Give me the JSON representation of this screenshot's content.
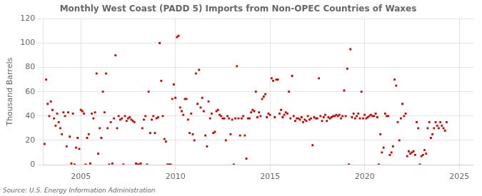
{
  "chart_data": {
    "type": "scatter",
    "title": "Monthly West Coast (PADD 5) Imports from Non-OPEC Countries of Waxes",
    "ylabel": "Thousand Barrels",
    "annotation": "Source: U.S. Energy Information Administration",
    "color": "#CC0000",
    "marker": "square",
    "grid": true,
    "xlim": [
      2003.0,
      2025.75
    ],
    "xticks": [
      2005,
      2010,
      2015,
      2020,
      2025
    ],
    "ylim": [
      0,
      120
    ],
    "yticks": [
      0,
      20,
      40,
      60,
      80,
      100,
      120
    ],
    "x": [
      2003.083,
      2003.167,
      2003.25,
      2003.333,
      2003.417,
      2003.5,
      2003.583,
      2003.667,
      2003.75,
      2003.833,
      2003.917,
      2004.0,
      2004.083,
      2004.167,
      2004.25,
      2004.333,
      2004.417,
      2004.5,
      2004.583,
      2004.667,
      2004.75,
      2004.833,
      2004.917,
      2005.0,
      2005.083,
      2005.167,
      2005.25,
      2005.333,
      2005.417,
      2005.5,
      2005.583,
      2005.667,
      2005.75,
      2005.833,
      2005.917,
      2006.0,
      2006.083,
      2006.167,
      2006.25,
      2006.333,
      2006.417,
      2006.5,
      2006.583,
      2006.667,
      2006.75,
      2006.833,
      2006.917,
      2007.0,
      2007.083,
      2007.167,
      2007.25,
      2007.333,
      2007.417,
      2007.5,
      2007.583,
      2007.667,
      2007.75,
      2007.833,
      2007.917,
      2008.0,
      2008.083,
      2008.167,
      2008.25,
      2008.333,
      2008.417,
      2008.5,
      2008.583,
      2008.667,
      2008.75,
      2008.833,
      2008.917,
      2009.0,
      2009.083,
      2009.167,
      2009.25,
      2009.333,
      2009.417,
      2009.5,
      2009.583,
      2009.667,
      2009.75,
      2009.833,
      2009.917,
      2010.0,
      2010.083,
      2010.167,
      2010.25,
      2010.333,
      2010.417,
      2010.5,
      2010.583,
      2010.667,
      2010.75,
      2010.833,
      2010.917,
      2011.0,
      2011.083,
      2011.167,
      2011.25,
      2011.333,
      2011.417,
      2011.5,
      2011.583,
      2011.667,
      2011.75,
      2011.833,
      2011.917,
      2012.0,
      2012.083,
      2012.167,
      2012.25,
      2012.333,
      2012.417,
      2012.5,
      2012.583,
      2012.667,
      2012.75,
      2012.833,
      2012.917,
      2013.0,
      2013.083,
      2013.167,
      2013.25,
      2013.333,
      2013.417,
      2013.5,
      2013.583,
      2013.667,
      2013.75,
      2013.833,
      2013.917,
      2014.0,
      2014.083,
      2014.167,
      2014.25,
      2014.333,
      2014.417,
      2014.5,
      2014.583,
      2014.667,
      2014.75,
      2014.833,
      2014.917,
      2015.0,
      2015.083,
      2015.167,
      2015.25,
      2015.333,
      2015.417,
      2015.5,
      2015.583,
      2015.667,
      2015.75,
      2015.833,
      2015.917,
      2016.0,
      2016.083,
      2016.167,
      2016.25,
      2016.333,
      2016.417,
      2016.5,
      2016.583,
      2016.667,
      2016.75,
      2016.833,
      2016.917,
      2017.0,
      2017.083,
      2017.167,
      2017.25,
      2017.333,
      2017.417,
      2017.5,
      2017.583,
      2017.667,
      2017.75,
      2017.833,
      2017.917,
      2018.0,
      2018.083,
      2018.167,
      2018.25,
      2018.333,
      2018.417,
      2018.5,
      2018.583,
      2018.667,
      2018.75,
      2018.833,
      2018.917,
      2019.0,
      2019.083,
      2019.167,
      2019.25,
      2019.333,
      2019.417,
      2019.5,
      2019.583,
      2019.667,
      2019.75,
      2019.833,
      2019.917,
      2020.0,
      2020.083,
      2020.167,
      2020.25,
      2020.333,
      2020.417,
      2020.5,
      2020.583,
      2020.667,
      2020.75,
      2020.833,
      2020.917,
      2021.0,
      2021.083,
      2021.167,
      2021.25,
      2021.333,
      2021.417,
      2021.5,
      2021.583,
      2021.667,
      2021.75,
      2021.833,
      2021.917,
      2022.0,
      2022.083,
      2022.167,
      2022.25,
      2022.333,
      2022.417,
      2022.5,
      2022.583,
      2022.667,
      2022.75,
      2022.833,
      2022.917,
      2023.0,
      2023.083,
      2023.167,
      2023.25,
      2023.333,
      2023.417,
      2023.5,
      2023.583,
      2023.667,
      2023.75,
      2023.833,
      2023.917,
      2024.0,
      2024.083,
      2024.167,
      2024.25,
      2024.333
    ],
    "values": [
      17,
      70,
      50,
      40,
      52,
      45,
      38,
      32,
      42,
      35,
      30,
      25,
      43,
      40,
      15,
      43,
      23,
      1,
      42,
      0,
      14,
      22,
      13,
      45,
      44,
      42,
      0,
      22,
      25,
      1,
      42,
      38,
      43,
      75,
      9,
      30,
      22,
      60,
      43,
      75,
      30,
      0,
      35,
      1,
      38,
      90,
      30,
      40,
      37,
      38,
      0,
      40,
      36,
      38,
      39,
      37,
      36,
      35,
      1,
      0,
      0,
      1,
      30,
      37,
      40,
      0,
      60,
      26,
      37,
      40,
      26,
      38,
      39,
      100,
      69,
      40,
      21,
      19,
      0,
      0,
      0,
      54,
      66,
      55,
      105,
      106,
      47,
      44,
      41,
      54,
      54,
      37,
      26,
      42,
      25,
      20,
      75,
      50,
      78,
      47,
      55,
      44,
      24,
      15,
      52,
      38,
      42,
      26,
      27,
      44,
      45,
      41,
      40,
      38,
      38,
      20,
      40,
      38,
      25,
      37,
      0,
      38,
      81,
      38,
      24,
      38,
      40,
      24,
      5,
      38,
      38,
      43,
      45,
      44,
      60,
      39,
      43,
      40,
      54,
      56,
      58,
      39,
      42,
      41,
      71,
      69,
      39,
      70,
      70,
      42,
      45,
      39,
      41,
      43,
      42,
      60,
      38,
      73,
      40,
      36,
      38,
      38,
      37,
      39,
      35,
      37,
      36,
      40,
      37,
      38,
      16,
      39,
      38,
      38,
      71,
      40,
      36,
      39,
      41,
      36,
      39,
      38,
      39,
      40,
      40,
      41,
      40,
      41,
      38,
      40,
      61,
      40,
      79,
      0,
      95,
      39,
      42,
      38,
      40,
      42,
      38,
      60,
      38,
      41,
      38,
      39,
      40,
      41,
      40,
      40,
      42,
      39,
      0,
      25,
      10,
      14,
      42,
      40,
      40,
      8,
      10,
      15,
      70,
      65,
      35,
      20,
      38,
      50,
      40,
      42,
      7,
      11,
      9,
      10,
      11,
      8,
      35,
      30,
      0,
      7,
      8,
      12,
      9,
      30,
      35,
      22,
      25,
      30,
      35,
      32,
      30,
      35,
      32,
      30,
      28,
      35
    ]
  }
}
